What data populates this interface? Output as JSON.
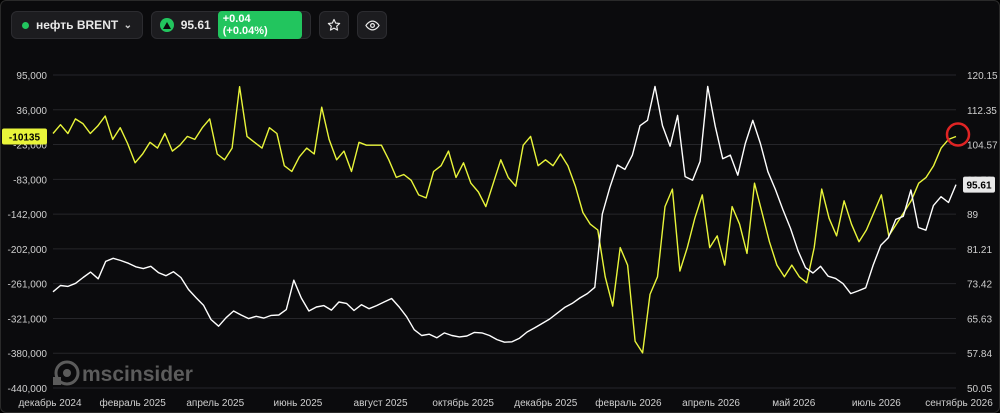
{
  "toolbar": {
    "symbol": "нефть BRENT",
    "price": "95.61",
    "change": "+0.04 (+0.04%)",
    "status_color": "#22c55e"
  },
  "watermark": "mscinsider",
  "chart_data": {
    "type": "line",
    "title": "",
    "xlabel": "",
    "x_ticks": [
      "декабрь 2024",
      "февраль 2025",
      "апрель 2025",
      "июнь 2025",
      "август 2025",
      "октябрь 2025",
      "декабрь 2025",
      "февраль 2026",
      "апрель 2026",
      "май 2026",
      "июль 2026",
      "сентябрь 2026"
    ],
    "left_axis": {
      "ticks": [
        "95,000",
        "36,000",
        "-23,000",
        "-83,000",
        "-142,000",
        "-202,000",
        "-261,000",
        "-321,000",
        "-380,000",
        "-440,000"
      ],
      "current_label": "-10135",
      "ylim": [
        -440000,
        95000
      ]
    },
    "right_axis": {
      "ticks": [
        "120.15",
        "112.35",
        "104.57",
        "96.78",
        "89",
        "81.21",
        "73.42",
        "65.63",
        "57.84",
        "50.05"
      ],
      "current_label": "95.61",
      "ylim": [
        50.05,
        120.15
      ]
    },
    "series": [
      {
        "axis": "left",
        "color": "#e9f53a",
        "values": [
          -5000,
          10000,
          -5000,
          20000,
          12000,
          -5000,
          8000,
          25000,
          -15000,
          5000,
          -22000,
          -55000,
          -40000,
          -20000,
          -30000,
          -5000,
          -35000,
          -25000,
          -10000,
          -15000,
          5000,
          20000,
          -40000,
          -50000,
          -30000,
          75000,
          -10000,
          -20000,
          -30000,
          5000,
          -5000,
          -60000,
          -70000,
          -45000,
          -30000,
          -40000,
          40000,
          -15000,
          -50000,
          -35000,
          -70000,
          -20000,
          -25000,
          -25000,
          -25000,
          -50000,
          -80000,
          -75000,
          -85000,
          -110000,
          -115000,
          -70000,
          -60000,
          -35000,
          -80000,
          -55000,
          -90000,
          -105000,
          -130000,
          -90000,
          -50000,
          -80000,
          -95000,
          -25000,
          -10000,
          -60000,
          -50000,
          -60000,
          -40000,
          -60000,
          -95000,
          -140000,
          -160000,
          -170000,
          -250000,
          -300000,
          -200000,
          -230000,
          -360000,
          -380000,
          -280000,
          -250000,
          -130000,
          -100000,
          -240000,
          -200000,
          -150000,
          -110000,
          -200000,
          -180000,
          -230000,
          -130000,
          -160000,
          -210000,
          -90000,
          -140000,
          -190000,
          -230000,
          -250000,
          -230000,
          -250000,
          -260000,
          -200000,
          -100000,
          -150000,
          -180000,
          -120000,
          -160000,
          -190000,
          -170000,
          -140000,
          -110000,
          -180000,
          -160000,
          -140000,
          -120000,
          -90000,
          -80000,
          -60000,
          -30000,
          -15000,
          -10135
        ]
      },
      {
        "axis": "right",
        "color": "#ffffff",
        "values": [
          71.6,
          73.0,
          72.8,
          73.5,
          74.8,
          76.0,
          74.5,
          78.4,
          79.1,
          78.6,
          78.0,
          77.2,
          76.8,
          77.3,
          75.9,
          75.2,
          76.1,
          74.8,
          72.1,
          70.3,
          68.6,
          65.4,
          63.9,
          65.8,
          67.3,
          66.4,
          65.6,
          66.1,
          65.7,
          66.3,
          66.4,
          67.6,
          74.2,
          70.2,
          67.3,
          68.2,
          68.5,
          67.5,
          69.3,
          69.0,
          67.4,
          68.7,
          67.8,
          68.5,
          69.3,
          70.1,
          68.2,
          66.0,
          63.1,
          61.8,
          62.1,
          61.3,
          62.4,
          61.8,
          61.5,
          61.7,
          62.5,
          62.4,
          61.8,
          60.9,
          60.3,
          60.4,
          61.2,
          62.6,
          63.5,
          64.5,
          65.5,
          66.8,
          68.1,
          69.0,
          70.2,
          71.2,
          72.6,
          89.0,
          95.0,
          100.0,
          99.0,
          102.2,
          108.8,
          110.0,
          117.6,
          108.8,
          104.2,
          111.1,
          97.4,
          96.6,
          100.8,
          117.6,
          108.7,
          101.4,
          102.2,
          97.7,
          104.8,
          110.0,
          104.8,
          98.5,
          94.5,
          90.0,
          85.8,
          80.8,
          77.0,
          75.8,
          77.3,
          75.1,
          74.6,
          73.4,
          71.2,
          71.8,
          72.5,
          77.6,
          82.0,
          83.7,
          87.8,
          88.5,
          94.4,
          86.0,
          85.4,
          90.9,
          92.9,
          91.6,
          95.61
        ]
      }
    ]
  }
}
